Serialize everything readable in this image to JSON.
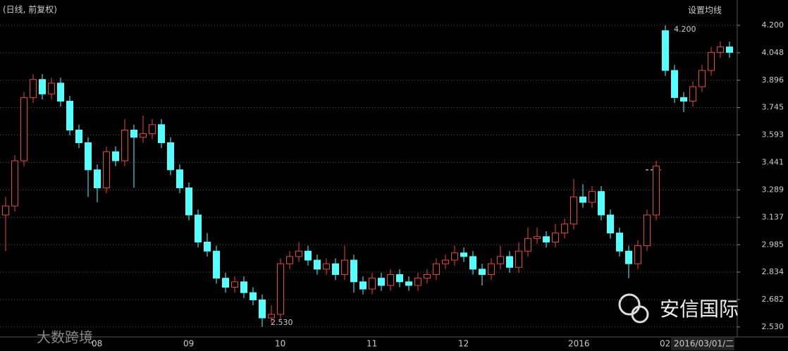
{
  "chart_data": {
    "type": "candlestick",
    "subtitle": "(日线, 前复权)",
    "ma_button": "设置均线",
    "date_label": "2016/03/01/二",
    "annotations": [
      "4.200",
      "2.530"
    ],
    "watermark": "大数跨境",
    "logo_text": "安信国际",
    "up_color": "#e8453c",
    "down_color": "#54ffff",
    "categories": [
      null,
      null,
      null,
      null,
      null,
      null,
      null,
      null,
      null,
      null,
      "08",
      null,
      null,
      null,
      null,
      null,
      null,
      null,
      null,
      null,
      "09",
      null,
      null,
      null,
      null,
      null,
      null,
      null,
      null,
      null,
      "10",
      null,
      null,
      null,
      null,
      null,
      null,
      null,
      null,
      null,
      "11",
      null,
      null,
      null,
      null,
      null,
      null,
      null,
      null,
      null,
      "12",
      null,
      null,
      null,
      null,
      null,
      null,
      null,
      null,
      null,
      null,
      null,
      "2016",
      null,
      null,
      null,
      null,
      null,
      null,
      null,
      null,
      null,
      "02",
      null,
      null,
      null,
      null,
      null,
      null,
      null
    ],
    "open": [
      3.15,
      3.2,
      3.45,
      3.8,
      3.9,
      3.82,
      3.88,
      3.78,
      3.62,
      3.55,
      3.4,
      3.3,
      3.5,
      3.45,
      3.62,
      3.58,
      3.6,
      3.65,
      3.55,
      3.4,
      3.3,
      3.15,
      3.0,
      2.95,
      2.8,
      2.75,
      2.78,
      2.72,
      2.68,
      2.58,
      2.6,
      2.88,
      2.92,
      2.95,
      2.9,
      2.85,
      2.88,
      2.82,
      2.9,
      2.78,
      2.74,
      2.8,
      2.76,
      2.82,
      2.78,
      2.76,
      2.8,
      2.82,
      2.88,
      2.9,
      2.94,
      2.92,
      2.85,
      2.82,
      2.88,
      2.92,
      2.86,
      2.95,
      3.02,
      3.03,
      3.0,
      3.05,
      3.1,
      3.25,
      3.22,
      3.28,
      3.15,
      3.05,
      2.95,
      2.88,
      2.98,
      3.15,
      4.17,
      3.95,
      3.8,
      3.78,
      3.86,
      3.95,
      4.05,
      4.08
    ],
    "high": [
      3.25,
      3.48,
      3.83,
      3.93,
      3.93,
      3.91,
      3.91,
      3.81,
      3.65,
      3.58,
      3.43,
      3.53,
      3.53,
      3.68,
      3.65,
      3.7,
      3.68,
      3.68,
      3.58,
      3.43,
      3.33,
      3.18,
      3.05,
      2.98,
      2.83,
      2.81,
      2.81,
      2.75,
      2.71,
      2.65,
      2.91,
      2.95,
      3.0,
      2.98,
      2.93,
      2.91,
      2.91,
      2.98,
      2.93,
      2.81,
      2.83,
      2.83,
      2.85,
      2.85,
      2.81,
      2.83,
      2.85,
      2.91,
      2.93,
      2.98,
      2.97,
      2.95,
      2.88,
      2.91,
      2.98,
      2.95,
      3.0,
      3.08,
      3.08,
      3.06,
      3.1,
      3.13,
      3.35,
      3.32,
      3.31,
      3.31,
      3.18,
      3.08,
      2.98,
      3.01,
      3.18,
      3.45,
      4.2,
      3.98,
      3.83,
      3.89,
      3.98,
      4.08,
      4.11,
      4.11
    ],
    "low": [
      2.95,
      3.17,
      3.42,
      3.77,
      3.79,
      3.79,
      3.75,
      3.59,
      3.52,
      3.25,
      3.22,
      3.27,
      3.42,
      3.42,
      3.3,
      3.55,
      3.57,
      3.52,
      3.37,
      3.27,
      3.12,
      2.97,
      2.92,
      2.77,
      2.72,
      2.72,
      2.69,
      2.65,
      2.53,
      2.55,
      2.57,
      2.85,
      2.89,
      2.87,
      2.82,
      2.82,
      2.79,
      2.79,
      2.72,
      2.71,
      2.71,
      2.73,
      2.73,
      2.75,
      2.73,
      2.73,
      2.77,
      2.79,
      2.85,
      2.87,
      2.89,
      2.82,
      2.76,
      2.79,
      2.85,
      2.83,
      2.83,
      2.92,
      2.99,
      2.97,
      2.97,
      3.02,
      3.07,
      3.19,
      3.19,
      3.12,
      3.02,
      2.92,
      2.8,
      2.85,
      2.95,
      3.12,
      3.92,
      3.77,
      3.72,
      3.75,
      3.83,
      3.92,
      4.02,
      4.02
    ],
    "close": [
      3.2,
      3.45,
      3.8,
      3.9,
      3.82,
      3.88,
      3.78,
      3.62,
      3.55,
      3.4,
      3.3,
      3.5,
      3.45,
      3.62,
      3.58,
      3.6,
      3.65,
      3.55,
      3.4,
      3.3,
      3.15,
      3.0,
      2.95,
      2.8,
      2.75,
      2.78,
      2.72,
      2.68,
      2.58,
      2.6,
      2.88,
      2.92,
      2.95,
      2.9,
      2.85,
      2.88,
      2.82,
      2.9,
      2.78,
      2.74,
      2.8,
      2.76,
      2.82,
      2.78,
      2.76,
      2.8,
      2.82,
      2.88,
      2.9,
      2.94,
      2.92,
      2.85,
      2.82,
      2.88,
      2.92,
      2.86,
      2.95,
      3.02,
      3.03,
      3.0,
      3.05,
      3.1,
      3.25,
      3.22,
      3.28,
      3.15,
      3.05,
      2.95,
      2.88,
      2.98,
      3.15,
      3.42,
      3.95,
      3.8,
      3.78,
      3.86,
      3.95,
      4.05,
      4.08,
      4.05
    ],
    "ylim": [
      2.475,
      4.34
    ],
    "yticks": [
      {
        "value": 4.2,
        "label": "4.200"
      },
      4.048,
      3.896,
      3.745,
      3.593,
      3.441,
      3.289,
      3.137,
      2.985,
      2.834,
      2.682,
      {
        "value": 2.53,
        "label": "2.530"
      }
    ],
    "grid": true
  }
}
